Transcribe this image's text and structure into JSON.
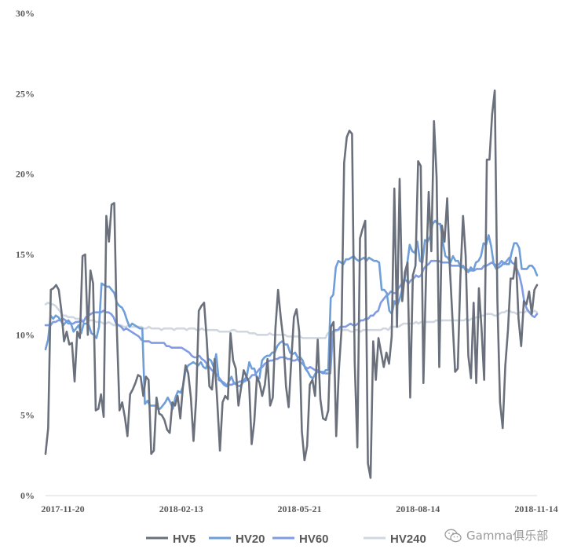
{
  "chart_data": {
    "type": "line",
    "title": "",
    "xlabel": "",
    "ylabel": "",
    "ylim": [
      0,
      30
    ],
    "y_ticks": [
      "0%",
      "5%",
      "10%",
      "15%",
      "20%",
      "25%",
      "30%"
    ],
    "x_ticks": [
      "2017-11-20",
      "2018-02-13",
      "2018-05-21",
      "2018-08-14",
      "2018-11-14"
    ],
    "grid": false,
    "legend_position": "bottom",
    "series": [
      {
        "name": "HV5",
        "color": "#6b717c",
        "values": [
          2.6,
          4.2,
          12.8,
          12.9,
          13.1,
          12.8,
          11.5,
          9.6,
          10.2,
          9.4,
          9.5,
          7.1,
          10.2,
          9.8,
          14.9,
          15.0,
          10.0,
          14.0,
          13.2,
          5.3,
          5.4,
          6.3,
          4.9,
          17.4,
          15.8,
          18.1,
          18.2,
          10.3,
          5.3,
          5.8,
          4.9,
          3.7,
          6.3,
          6.6,
          7.0,
          7.5,
          7.4,
          6.2,
          7.4,
          7.2,
          2.6,
          2.8,
          6.1,
          5.1,
          5.0,
          4.7,
          4.1,
          3.9,
          5.8,
          5.6,
          6.2,
          4.8,
          6.8,
          8.1,
          7.6,
          6.1,
          3.4,
          6.0,
          11.5,
          11.8,
          12.0,
          9.7,
          6.8,
          6.6,
          8.5,
          5.8,
          2.8,
          5.8,
          6.2,
          6.0,
          10.1,
          8.4,
          7.9,
          5.6,
          6.7,
          7.8,
          7.4,
          7.1,
          3.2,
          4.6,
          7.4,
          7.0,
          6.2,
          6.9,
          8.5,
          5.6,
          6.1,
          10.4,
          12.8,
          11.1,
          9.7,
          6.8,
          5.5,
          8.4,
          11.1,
          11.6,
          10.2,
          4.0,
          2.2,
          3.1,
          6.9,
          7.2,
          6.2,
          9.7,
          6.0,
          4.8,
          4.7,
          5.3,
          10.5,
          10.8,
          3.7,
          7.8,
          10.3,
          20.7,
          22.3,
          22.7,
          22.5,
          8.3,
          3.0,
          16.0,
          16.6,
          17.1,
          2.0,
          1.1,
          9.6,
          7.2,
          9.8,
          8.9,
          8.0,
          8.9,
          8.2,
          9.9,
          19.1,
          10.5,
          19.7,
          12.1,
          13.9,
          14.5,
          6.1,
          13.7,
          14.3,
          20.8,
          20.5,
          7.0,
          13.7,
          18.9,
          15.2,
          23.3,
          19.8,
          8.0,
          16.8,
          15.8,
          18.5,
          14.2,
          11.0,
          7.7,
          7.9,
          13.6,
          17.4,
          14.9,
          8.7,
          7.3,
          12.0,
          7.0,
          12.9,
          10.4,
          7.2,
          20.9,
          20.9,
          23.7,
          25.2,
          12.1,
          5.8,
          4.2,
          8.1,
          10.3,
          13.5,
          13.5,
          14.8,
          11.0,
          9.3,
          12.1,
          11.9,
          12.7,
          11.3,
          12.8,
          13.1
        ]
      },
      {
        "name": "HV20",
        "color": "#6f9fd8",
        "values": [
          9.1,
          9.7,
          11.2,
          11.0,
          11.2,
          11.1,
          10.9,
          10.6,
          10.8,
          10.9,
          10.7,
          10.2,
          10.4,
          10.6,
          10.1,
          10.7,
          10.7,
          10.6,
          10.1,
          10.0,
          9.8,
          10.5,
          13.2,
          13.1,
          13.0,
          13.0,
          12.8,
          12.6,
          12.0,
          11.8,
          11.7,
          11.4,
          10.9,
          10.5,
          10.7,
          10.6,
          10.5,
          10.4,
          10.4,
          5.7,
          5.9,
          5.6,
          5.6,
          5.6,
          5.4,
          5.4,
          5.6,
          5.8,
          6.1,
          5.8,
          5.4,
          6.1,
          6.5,
          6.4,
          6.8,
          7.8,
          8.1,
          8.2,
          8.3,
          8.2,
          8.1,
          8.3,
          8.0,
          7.9,
          8.5,
          8.4,
          8.0,
          8.8,
          7.2,
          7.1,
          6.9,
          6.8,
          7.1,
          7.4,
          7.0,
          6.9,
          6.8,
          6.9,
          7.2,
          7.4,
          8.3,
          7.9,
          7.9,
          7.3,
          7.3,
          8.4,
          8.6,
          8.7,
          8.7,
          8.9,
          8.9,
          9.3,
          9.5,
          9.6,
          9.4,
          9.4,
          8.9,
          8.8,
          8.9,
          8.6,
          8.6,
          8.4,
          7.9,
          7.7,
          7.4,
          7.3,
          7.6,
          7.7,
          7.7,
          7.6,
          7.8,
          7.8,
          12.3,
          12.5,
          14.2,
          14.6,
          14.5,
          14.4,
          14.7,
          14.7,
          14.8,
          14.9,
          14.7,
          14.6,
          14.7,
          14.8,
          14.6,
          14.8,
          14.7,
          14.6,
          14.6,
          14.5,
          12.8,
          12.8,
          12.6,
          11.5,
          11.3,
          12.1,
          11.8,
          12.2,
          12.8,
          13.4,
          14.4,
          15.6,
          15.2,
          15.1,
          15.8,
          14.6,
          14.5,
          15.9,
          15.8,
          16.1,
          16.9,
          17.1,
          16.9,
          16.9,
          15.8,
          14.9,
          14.8,
          14.5,
          14.9,
          14.6,
          14.6,
          14.2,
          14.3,
          14.0,
          13.9,
          14.2,
          14.0,
          14.5,
          14.6,
          14.9,
          15.7,
          15.6,
          16.2,
          15.5,
          14.4,
          14.1,
          14.2,
          14.3,
          14.5,
          14.4,
          14.4,
          15.1,
          15.7,
          15.7,
          15.4,
          14.1,
          14.1,
          14.1,
          14.3,
          14.3,
          14.1,
          13.7
        ]
      },
      {
        "name": "HV60",
        "color": "#7f9ce4",
        "values": [
          10.6,
          10.6,
          10.6,
          10.8,
          10.8,
          10.9,
          10.9,
          11.0,
          10.9,
          10.7,
          10.7,
          10.7,
          10.8,
          10.8,
          10.9,
          10.8,
          11.1,
          11.2,
          11.3,
          11.4,
          11.4,
          11.4,
          11.4,
          11.5,
          11.4,
          11.4,
          11.3,
          11.1,
          10.7,
          10.6,
          10.5,
          10.3,
          10.4,
          10.3,
          10.2,
          10.1,
          10.0,
          9.9,
          9.7,
          9.6,
          9.6,
          9.6,
          9.5,
          9.5,
          9.5,
          9.5,
          9.5,
          9.5,
          9.3,
          9.3,
          9.2,
          9.2,
          9.2,
          9.2,
          9.2,
          9.1,
          9.0,
          8.9,
          8.7,
          8.6,
          8.6,
          8.7,
          8.5,
          8.4,
          8.2,
          8.0,
          7.8,
          7.7,
          7.5,
          7.3,
          7.1,
          7.0,
          6.8,
          6.9,
          6.9,
          7.0,
          7.0,
          7.1,
          7.1,
          7.1,
          7.2,
          7.3,
          7.5,
          7.5,
          7.7,
          7.9,
          8.0,
          8.2,
          8.3,
          8.4,
          8.4,
          8.5,
          8.5,
          8.6,
          8.6,
          8.6,
          8.5,
          8.5,
          8.4,
          8.4,
          8.5,
          8.3,
          8.2,
          8.0,
          7.9,
          8.0,
          7.9,
          7.8,
          7.8,
          7.7,
          7.7,
          7.6,
          7.6,
          7.6,
          10.2,
          10.3,
          10.3,
          10.5,
          10.5,
          10.5,
          10.6,
          10.7,
          10.6,
          10.6,
          10.7,
          10.9,
          10.9,
          11.0,
          11.0,
          11.2,
          11.2,
          11.4,
          11.5,
          12.0,
          12.2,
          12.4,
          12.5,
          12.7,
          12.6,
          12.6,
          12.9,
          13.1,
          13.4,
          13.4,
          13.2,
          13.4,
          13.5,
          13.7,
          13.6,
          13.7,
          14.1,
          14.3,
          14.4,
          14.6,
          14.6,
          14.6,
          14.6,
          14.5,
          14.5,
          14.5,
          14.5,
          14.3,
          14.3,
          14.3,
          14.3,
          14.2,
          14.2,
          14.1,
          14.0,
          14.0,
          14.0,
          14.1,
          14.1,
          14.1,
          14.3,
          14.3,
          14.4,
          14.5,
          14.4,
          14.3,
          14.4,
          14.6,
          14.4,
          14.6,
          14.8,
          14.5,
          14.4,
          14.1,
          13.7,
          13.0,
          12.0,
          11.6,
          11.4,
          11.2,
          11.1,
          11.3
        ]
      },
      {
        "name": "HV240",
        "color": "#d0d7e1",
        "values": [
          11.9,
          12.0,
          11.9,
          11.9,
          11.8,
          11.6,
          11.4,
          11.2,
          11.2,
          11.1,
          11.1,
          11.1,
          11.0,
          11.0,
          11.0,
          10.9,
          11.0,
          10.9,
          10.9,
          10.9,
          10.8,
          10.8,
          10.8,
          10.7,
          10.7,
          10.8,
          10.7,
          10.6,
          10.6,
          10.6,
          10.6,
          10.5,
          10.5,
          10.6,
          10.5,
          10.5,
          10.5,
          10.5,
          10.5,
          10.4,
          10.4,
          10.5,
          10.4,
          10.4,
          10.4,
          10.4,
          10.3,
          10.4,
          10.4,
          10.4,
          10.4,
          10.3,
          10.4,
          10.4,
          10.4,
          10.4,
          10.3,
          10.4,
          10.4,
          10.4,
          10.3,
          10.3,
          10.4,
          10.3,
          10.3,
          10.3,
          10.3,
          10.3,
          10.3,
          10.2,
          10.2,
          10.2,
          10.2,
          10.2,
          10.3,
          10.3,
          10.2,
          10.2,
          10.2,
          10.2,
          10.2,
          10.1,
          10.1,
          10.1,
          10.0,
          10.0,
          10.0,
          10.0,
          10.0,
          10.1,
          10.0,
          10.0,
          10.0,
          10.0,
          10.0,
          10.0,
          9.9,
          9.9,
          9.9,
          9.9,
          9.9,
          9.9,
          9.8,
          9.8,
          9.8,
          9.8,
          9.8,
          9.8,
          9.8,
          9.8,
          9.8,
          9.8,
          10.1,
          10.2,
          10.2,
          10.2,
          10.3,
          10.3,
          10.3,
          10.3,
          10.3,
          10.2,
          10.2,
          10.3,
          10.3,
          10.2,
          10.3,
          10.3,
          10.3,
          10.3,
          10.3,
          10.3,
          10.3,
          10.3,
          10.4,
          10.4,
          10.3,
          10.5,
          10.5,
          10.5,
          10.5,
          10.6,
          10.7,
          10.7,
          10.7,
          10.7,
          10.7,
          10.8,
          10.7,
          10.8,
          10.8,
          10.8,
          10.8,
          10.8,
          10.8,
          10.9,
          10.9,
          10.9,
          10.9,
          10.9,
          10.9,
          10.9,
          10.9,
          10.9,
          10.9,
          10.9,
          10.9,
          11.0,
          10.9,
          11.0,
          11.0,
          11.1,
          11.1,
          11.2,
          11.2,
          11.3,
          11.3,
          11.3,
          11.2,
          11.2,
          11.3,
          11.4,
          11.4,
          11.5,
          11.5,
          11.4,
          11.4,
          11.3,
          11.4,
          11.4,
          11.4,
          11.5,
          11.4,
          11.4,
          11.5,
          11.4
        ]
      }
    ]
  },
  "watermark": {
    "text": "Gamma俱乐部",
    "icon": "wechat-icon"
  }
}
